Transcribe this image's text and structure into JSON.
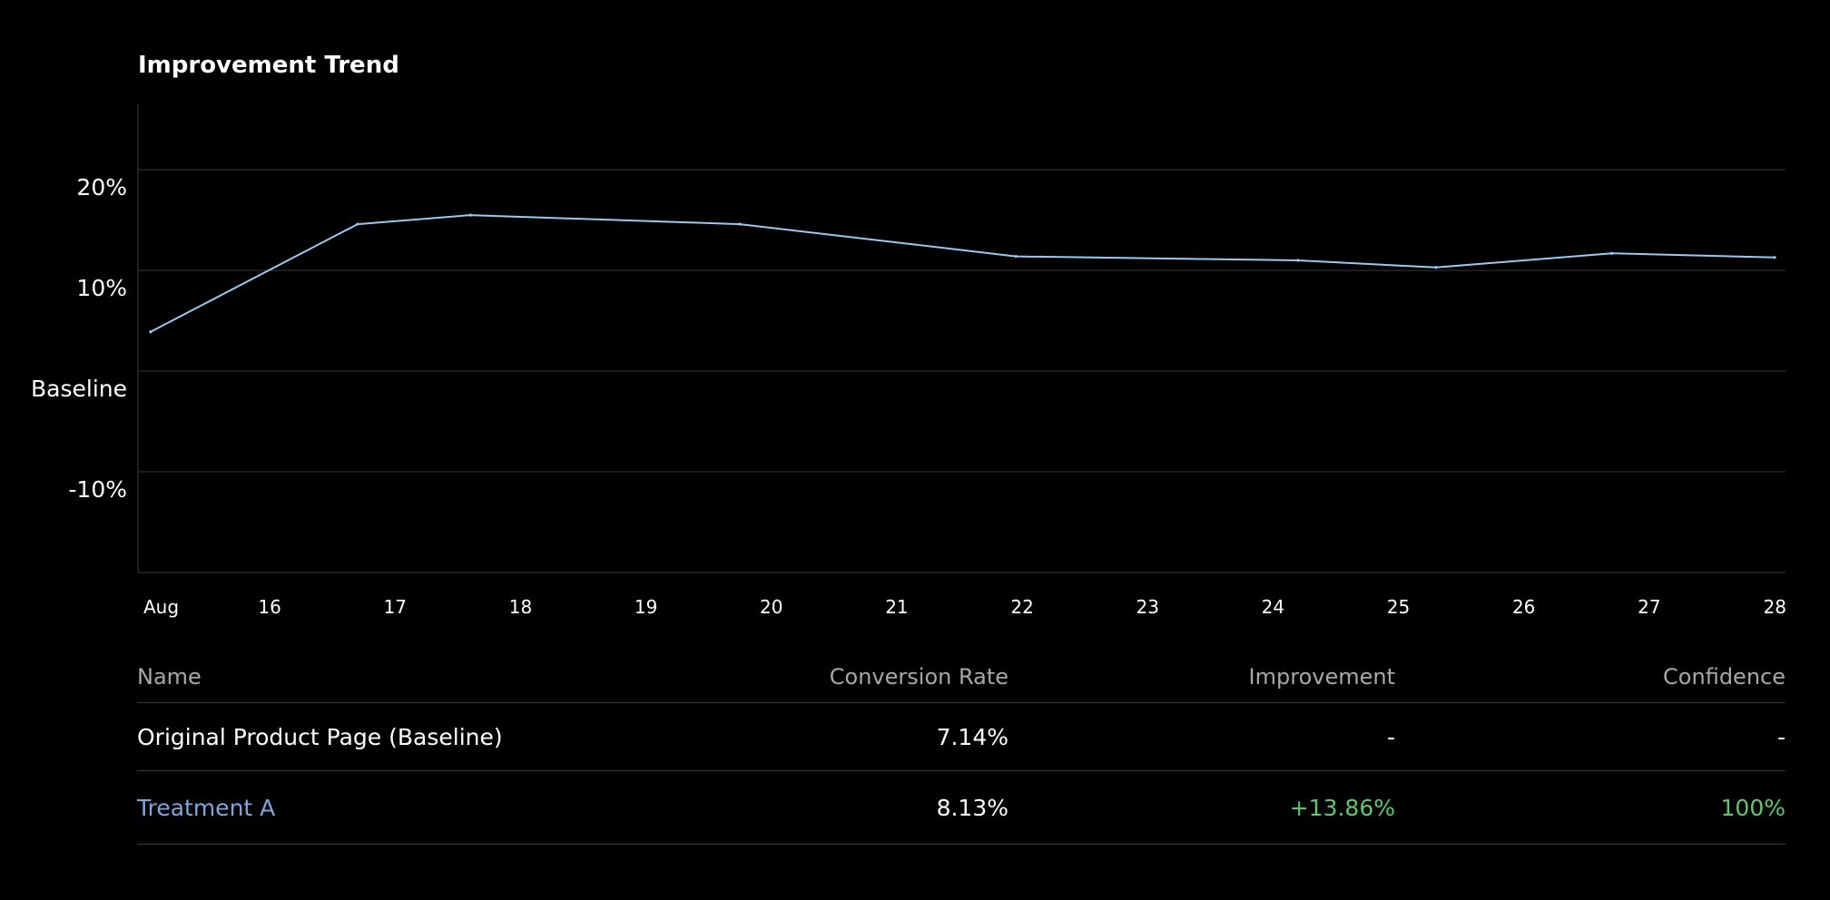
{
  "colors": {
    "background": "#000000",
    "line": "#9cc9f2",
    "grid": "#2e2e2e",
    "axis": "#3a3a3a",
    "treatment": "#7fa8dc",
    "positive": "#5cc96e"
  },
  "chart_data": {
    "type": "line",
    "title": "Improvement Trend",
    "xlabel": "",
    "ylabel": "",
    "x": [
      "2016-08-15",
      "2016-08-16",
      "2016-08-17",
      "2016-08-18",
      "2016-08-19",
      "2016-08-20",
      "2016-08-21",
      "2016-08-22",
      "2016-08-23",
      "2016-08-24",
      "2016-08-25",
      "2016-08-26",
      "2016-08-27",
      "2016-08-28"
    ],
    "xtick_labels": [
      "Aug",
      "16",
      "17",
      "18",
      "19",
      "20",
      "21",
      "22",
      "23",
      "24",
      "25",
      "26",
      "27",
      "28"
    ],
    "ylim": [
      -20,
      26.5
    ],
    "yticks": [
      {
        "value": 20,
        "label": "20%"
      },
      {
        "value": 10,
        "label": "10%"
      },
      {
        "value": 0,
        "label": "Baseline"
      },
      {
        "value": -10,
        "label": "-10%"
      }
    ],
    "grid": true,
    "series": [
      {
        "points": [
          {
            "x": 0.05,
            "y": 3.9
          },
          {
            "x": 1.7,
            "y": 14.6
          },
          {
            "x": 2.6,
            "y": 15.5
          },
          {
            "x": 4.75,
            "y": 14.6
          },
          {
            "x": 6.95,
            "y": 11.4
          },
          {
            "x": 9.2,
            "y": 11.0
          },
          {
            "x": 10.3,
            "y": 10.3
          },
          {
            "x": 11.7,
            "y": 11.7
          },
          {
            "x": 13.0,
            "y": 11.3
          }
        ]
      }
    ]
  },
  "table": {
    "headers": {
      "name": "Name",
      "conversion_rate": "Conversion Rate",
      "improvement": "Improvement",
      "confidence": "Confidence"
    },
    "rows": [
      {
        "name": "Original Product Page (Baseline)",
        "conversion_rate": "7.14%",
        "improvement": "-",
        "confidence": "-"
      },
      {
        "name": "Treatment A",
        "conversion_rate": "8.13%",
        "improvement": "+13.86%",
        "confidence": "100%"
      }
    ]
  }
}
